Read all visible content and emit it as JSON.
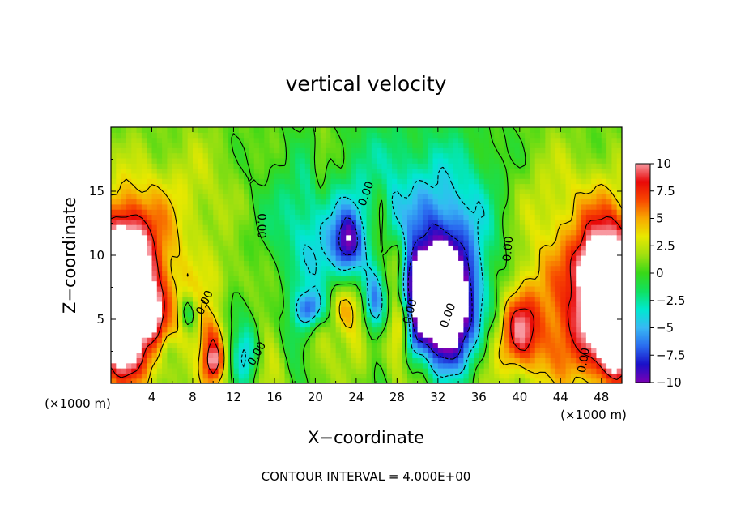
{
  "chart_data": {
    "type": "heatmap",
    "title": "vertical velocity",
    "xlabel": "X−coordinate",
    "ylabel": "Z−coordinate",
    "x_unit_left": "(×1000 m)",
    "x_unit_right": "(×1000 m)",
    "footer": "CONTOUR INTERVAL = 4.000E+00",
    "xlim": [
      0,
      50
    ],
    "ylim": [
      0,
      20
    ],
    "x_ticks": [
      4,
      8,
      12,
      16,
      20,
      24,
      28,
      32,
      36,
      40,
      44,
      48
    ],
    "y_ticks": [
      5,
      10,
      15
    ],
    "colorbar": {
      "min": -10,
      "max": 10,
      "tick_values": [
        10,
        7.5,
        5,
        2.5,
        0,
        -2.5,
        -5,
        -7.5,
        -10
      ],
      "tick_labels": [
        "10",
        "7.5",
        "5",
        "2.5",
        "0",
        "−2.5",
        "−5",
        "−7.5",
        "−10"
      ],
      "stops": [
        "#7a00b4",
        "#1a10c8",
        "#2a6cf0",
        "#38b8f4",
        "#00e8d0",
        "#10e060",
        "#38d818",
        "#a0e010",
        "#e8e800",
        "#f8a800",
        "#f84800",
        "#e80808",
        "#f898a0"
      ]
    },
    "contour_labels": [
      {
        "text": "0.00",
        "x": 14.7,
        "y": 12.3,
        "angle": 90
      },
      {
        "text": "0.00",
        "x": 9.2,
        "y": 6.3,
        "angle": -65
      },
      {
        "text": "0.00",
        "x": 14.3,
        "y": 2.3,
        "angle": -60
      },
      {
        "text": "0.00",
        "x": 25.0,
        "y": 14.8,
        "angle": -70
      },
      {
        "text": "0.00",
        "x": 29.3,
        "y": 5.6,
        "angle": -75
      },
      {
        "text": "0.00",
        "x": 33.0,
        "y": 5.3,
        "angle": -70
      },
      {
        "text": "0.00",
        "x": 38.9,
        "y": 10.5,
        "angle": -85
      },
      {
        "text": "0.00",
        "x": 46.3,
        "y": 1.8,
        "angle": -80
      }
    ],
    "features": [
      {
        "x": 1.0,
        "y": 8.5,
        "sx": 1.8,
        "sy": 3.6,
        "v": 11
      },
      {
        "x": 1.0,
        "y": 3.8,
        "sx": 1.3,
        "sy": 2.5,
        "v": 9
      },
      {
        "x": 3.2,
        "y": 5.8,
        "sx": 2.6,
        "sy": 4.0,
        "v": 7
      },
      {
        "x": 4.0,
        "y": 5.9,
        "sx": 0.6,
        "sy": 1.1,
        "v": 6
      },
      {
        "x": 2.5,
        "y": 11.5,
        "sx": 2.5,
        "sy": 3.0,
        "v": 2.5
      },
      {
        "x": 49.0,
        "y": 8.0,
        "sx": 1.9,
        "sy": 3.8,
        "v": 11
      },
      {
        "x": 49.3,
        "y": 3.8,
        "sx": 1.1,
        "sy": 2.4,
        "v": 9
      },
      {
        "x": 46.8,
        "y": 6.0,
        "sx": 3.0,
        "sy": 4.5,
        "v": 7
      },
      {
        "x": 47.0,
        "y": 9.5,
        "sx": 1.0,
        "sy": 1.2,
        "v": 3
      },
      {
        "x": 10.0,
        "y": 2.2,
        "sx": 0.9,
        "sy": 2.2,
        "v": 7
      },
      {
        "x": 10.0,
        "y": 1.7,
        "sx": 0.35,
        "sy": 0.7,
        "v": 4
      },
      {
        "x": 9.0,
        "y": 5.5,
        "sx": 1.5,
        "sy": 2.0,
        "v": 2.5
      },
      {
        "x": 7.5,
        "y": 5.5,
        "sx": 0.6,
        "sy": 1.0,
        "v": -5
      },
      {
        "x": 5.5,
        "y": 2.5,
        "sx": 0.6,
        "sy": 1.0,
        "v": -3
      },
      {
        "x": 13.2,
        "y": 2.5,
        "sx": 0.9,
        "sy": 1.8,
        "v": -6
      },
      {
        "x": 11.5,
        "y": 5.5,
        "sx": 1.0,
        "sy": 1.5,
        "v": -2.5
      },
      {
        "x": 12.0,
        "y": 8.5,
        "sx": 1.5,
        "sy": 1.5,
        "v": 1.5
      },
      {
        "x": 15.5,
        "y": 3.0,
        "sx": 1.5,
        "sy": 2.5,
        "v": 2.5
      },
      {
        "x": 19.5,
        "y": 5.8,
        "sx": 0.9,
        "sy": 1.0,
        "v": -7
      },
      {
        "x": 20.5,
        "y": 3.0,
        "sx": 1.2,
        "sy": 2.0,
        "v": 2
      },
      {
        "x": 18.0,
        "y": 3.5,
        "sx": 1.0,
        "sy": 2.0,
        "v": -3
      },
      {
        "x": 21.5,
        "y": 10.5,
        "sx": 3.5,
        "sy": 3.5,
        "v": -4
      },
      {
        "x": 23.2,
        "y": 11.0,
        "sx": 0.9,
        "sy": 1.6,
        "v": -7
      },
      {
        "x": 23.0,
        "y": 6.0,
        "sx": 1.0,
        "sy": 1.5,
        "v": 6
      },
      {
        "x": 24.5,
        "y": 3.5,
        "sx": 1.2,
        "sy": 1.8,
        "v": 2.5
      },
      {
        "x": 25.8,
        "y": 6.0,
        "sx": 0.7,
        "sy": 1.8,
        "v": -7
      },
      {
        "x": 26.5,
        "y": 11.0,
        "sx": 0.8,
        "sy": 3.0,
        "v": 3.5
      },
      {
        "x": 27.8,
        "y": 9.5,
        "sx": 0.6,
        "sy": 1.8,
        "v": 6
      },
      {
        "x": 27.5,
        "y": 12.5,
        "sx": 0.5,
        "sy": 2.0,
        "v": -3
      },
      {
        "x": 28.5,
        "y": 4.5,
        "sx": 0.9,
        "sy": 2.5,
        "v": 8
      },
      {
        "x": 29.5,
        "y": 3.0,
        "sx": 0.8,
        "sy": 1.5,
        "v": -5
      },
      {
        "x": 30.5,
        "y": 2.5,
        "sx": 0.7,
        "sy": 1.5,
        "v": 3
      },
      {
        "x": 32.0,
        "y": 6.5,
        "sx": 2.3,
        "sy": 2.4,
        "v": -14
      },
      {
        "x": 32.5,
        "y": 9.5,
        "sx": 3.2,
        "sy": 3.5,
        "v": -6
      },
      {
        "x": 33.0,
        "y": 3.0,
        "sx": 2.0,
        "sy": 2.0,
        "v": -7
      },
      {
        "x": 32.0,
        "y": 12.5,
        "sx": 3.0,
        "sy": 3.5,
        "v": -3
      },
      {
        "x": 30.0,
        "y": 8.0,
        "sx": 1.0,
        "sy": 1.5,
        "v": -4
      },
      {
        "x": 20.5,
        "y": 17.5,
        "sx": 0.5,
        "sy": 2.5,
        "v": 3
      },
      {
        "x": 22.0,
        "y": 16.0,
        "sx": 1.0,
        "sy": 2.5,
        "v": 1.5
      },
      {
        "x": 40.0,
        "y": 4.5,
        "sx": 1.2,
        "sy": 2.0,
        "v": 6
      },
      {
        "x": 42.0,
        "y": 3.0,
        "sx": 2.5,
        "sy": 2.5,
        "v": 3
      },
      {
        "x": 41.0,
        "y": 8.0,
        "sx": 2.0,
        "sy": 2.0,
        "v": 1.5
      },
      {
        "x": 37.5,
        "y": 2.5,
        "sx": 1.5,
        "sy": 2.0,
        "v": 2
      },
      {
        "x": 28.0,
        "y": 17.5,
        "sx": 6.0,
        "sy": 3.0,
        "v": -2
      },
      {
        "x": 37.0,
        "y": 15.0,
        "sx": 2.5,
        "sy": 3.5,
        "v": -1.5
      },
      {
        "x": 20.0,
        "y": 14.0,
        "sx": 5.0,
        "sy": 3.0,
        "v": -1.5
      },
      {
        "x": 7.5,
        "y": 14.5,
        "sx": 4.0,
        "sy": 3.5,
        "v": 2
      },
      {
        "x": 42.5,
        "y": 14.0,
        "sx": 4.5,
        "sy": 3.5,
        "v": 2
      }
    ]
  }
}
